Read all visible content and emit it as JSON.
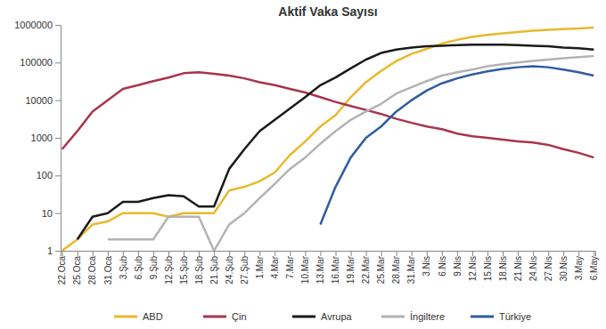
{
  "chart_data": {
    "type": "line",
    "title": "Aktif Vaka Sayısı",
    "categories": [
      "22.Oca",
      "25.Oca",
      "28.Oca",
      "31.Oca",
      "3.Şub",
      "6.Şub",
      "9.Şub",
      "12.Şub",
      "15.Şub",
      "18.Şub",
      "21.Şub",
      "24.Şub",
      "27.Şub",
      "1.Mar",
      "4.Mar",
      "7.Mar",
      "10.Mar",
      "13.Mar",
      "16.Mar",
      "19.Mar",
      "22.Mar",
      "25.Mar",
      "28.Mar",
      "31.Mar",
      "3.Nis",
      "6.Nis",
      "9.Nis",
      "12.Nis",
      "15.Nis",
      "18.Nis",
      "21.Nis",
      "24.Nis",
      "27.Nis",
      "30.Nis",
      "3.May",
      "6.May"
    ],
    "series": [
      {
        "name": "ABD",
        "color": "#e8b92a",
        "values": [
          1,
          2,
          5,
          6,
          10,
          10,
          10,
          8,
          10,
          10,
          10,
          40,
          50,
          70,
          120,
          350,
          800,
          2000,
          4000,
          12000,
          30000,
          60000,
          110000,
          170000,
          230000,
          320000,
          400000,
          480000,
          540000,
          600000,
          650000,
          700000,
          740000,
          770000,
          800000,
          850000
        ]
      },
      {
        "name": "Çin",
        "color": "#a9344c",
        "values": [
          500,
          1500,
          5000,
          10000,
          20000,
          25000,
          32000,
          40000,
          52000,
          55000,
          50000,
          45000,
          38000,
          30000,
          25000,
          20000,
          16000,
          12000,
          9000,
          7000,
          5500,
          4300,
          3200,
          2500,
          2000,
          1700,
          1300,
          1100,
          1000,
          900,
          800,
          750,
          650,
          500,
          400,
          300
        ]
      },
      {
        "name": "Avrupa",
        "color": "#1a1a1a",
        "values": [
          null,
          2,
          8,
          10,
          20,
          20,
          25,
          30,
          28,
          15,
          15,
          150,
          500,
          1500,
          3000,
          6000,
          12000,
          25000,
          40000,
          70000,
          120000,
          180000,
          220000,
          250000,
          270000,
          280000,
          290000,
          300000,
          300000,
          300000,
          290000,
          280000,
          270000,
          250000,
          240000,
          220000
        ]
      },
      {
        "name": "İngiltere",
        "color": "#b3b3b3",
        "values": [
          null,
          null,
          null,
          2,
          2,
          2,
          2,
          8,
          8,
          8,
          1,
          5,
          10,
          25,
          60,
          150,
          300,
          700,
          1500,
          3000,
          5000,
          8000,
          15000,
          22000,
          32000,
          45000,
          55000,
          65000,
          80000,
          90000,
          100000,
          110000,
          120000,
          130000,
          140000,
          150000
        ]
      },
      {
        "name": "Türkiye",
        "color": "#2f5d9f",
        "values": [
          null,
          null,
          null,
          null,
          null,
          null,
          null,
          null,
          null,
          null,
          null,
          null,
          null,
          null,
          null,
          null,
          null,
          5,
          50,
          300,
          1000,
          2000,
          5000,
          10000,
          18000,
          28000,
          38000,
          48000,
          58000,
          68000,
          75000,
          80000,
          75000,
          65000,
          55000,
          45000
        ]
      }
    ],
    "ylim": [
      1,
      1000000
    ],
    "yticks": [
      1,
      10,
      100,
      1000,
      10000,
      100000,
      1000000
    ],
    "log": "y",
    "grid": false,
    "legend": "bottom"
  }
}
